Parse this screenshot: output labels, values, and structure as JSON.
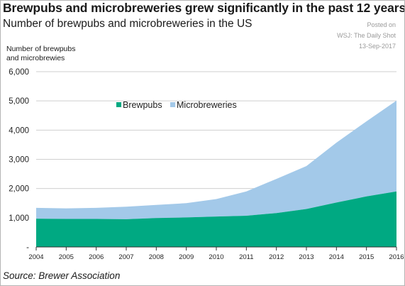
{
  "header": {
    "title": "Brewpubs and microbreweries grew significantly in the past 12 years",
    "subtitle": "Number of brewpubs and microbreweries in the US"
  },
  "attribution": {
    "line1": "Posted on",
    "line2": "WSJ: The Daily Shot",
    "line3": "13-Sep-2017"
  },
  "footer": {
    "source": "Source: Brewer Association"
  },
  "chart_data": {
    "type": "area",
    "stacked": true,
    "ylabel_lines": [
      "Number of brewpubs",
      "and microbrewies"
    ],
    "x": [
      "2004",
      "2005",
      "2006",
      "2007",
      "2008",
      "2009",
      "2010",
      "2011",
      "2012",
      "2013",
      "2014",
      "2015",
      "2016"
    ],
    "y_ticks": [
      "-",
      "1,000",
      "2,000",
      "3,000",
      "4,000",
      "5,000",
      "6,000"
    ],
    "ylim": [
      0,
      6000
    ],
    "grid": true,
    "legend_position": "upper-center",
    "series": [
      {
        "name": "Brewpubs",
        "color": "#00a982",
        "values": [
          970,
          960,
          960,
          950,
          990,
          1010,
          1040,
          1070,
          1160,
          1300,
          1520,
          1730,
          1900
        ]
      },
      {
        "name": "Microbreweries",
        "color": "#a3c9e9",
        "values": [
          370,
          360,
          380,
          430,
          450,
          490,
          600,
          830,
          1170,
          1470,
          2050,
          2570,
          3110
        ]
      }
    ]
  }
}
